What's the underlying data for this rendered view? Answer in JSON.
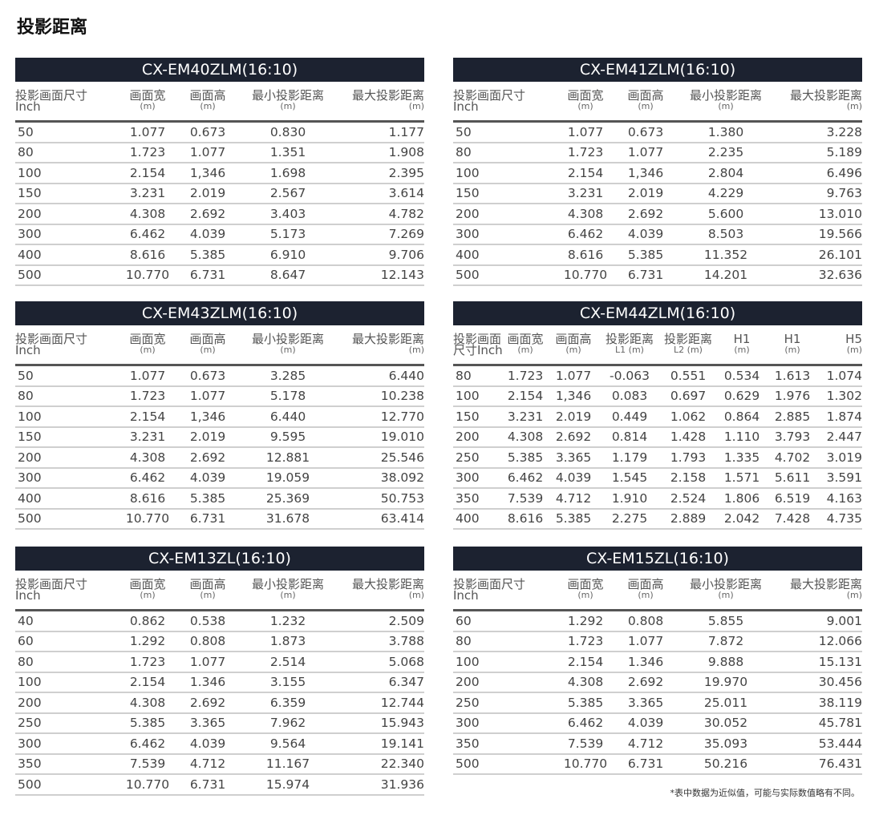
{
  "page_title": "投影距离",
  "footnote": "*表中数据为近似值，可能与实际数值略有不同。",
  "tables": [
    {
      "title": "CX-EM40ZLM(16:10)",
      "headers": [
        [
          "投影画面尺寸",
          "Inch"
        ],
        [
          "画面宽",
          "(m)"
        ],
        [
          "画面高",
          "(m)"
        ],
        [
          "最小投影距离",
          "(m)"
        ],
        [
          "最大投影距离",
          "(m)"
        ]
      ],
      "rows": [
        [
          "50",
          "1.077",
          "0.673",
          "0.830",
          "1.177"
        ],
        [
          "80",
          "1.723",
          "1.077",
          "1.351",
          "1.908"
        ],
        [
          "100",
          "2.154",
          "1,346",
          "1.698",
          "2.395"
        ],
        [
          "150",
          "3.231",
          "2.019",
          "2.567",
          "3.614"
        ],
        [
          "200",
          "4.308",
          "2.692",
          "3.403",
          "4.782"
        ],
        [
          "300",
          "6.462",
          "4.039",
          "5.173",
          "7.269"
        ],
        [
          "400",
          "8.616",
          "5.385",
          "6.910",
          "9.706"
        ],
        [
          "500",
          "10.770",
          "6.731",
          "8.647",
          "12.143"
        ]
      ]
    },
    {
      "title": "CX-EM41ZLM(16:10)",
      "headers": [
        [
          "投影画面尺寸",
          "Inch"
        ],
        [
          "画面宽",
          "(m)"
        ],
        [
          "画面高",
          "(m)"
        ],
        [
          "最小投影距离",
          "(m)"
        ],
        [
          "最大投影距离",
          "(m)"
        ]
      ],
      "rows": [
        [
          "50",
          "1.077",
          "0.673",
          "1.380",
          "3.228"
        ],
        [
          "80",
          "1.723",
          "1.077",
          "2.235",
          "5.189"
        ],
        [
          "100",
          "2.154",
          "1,346",
          "2.804",
          "6.496"
        ],
        [
          "150",
          "3.231",
          "2.019",
          "4.229",
          "9.763"
        ],
        [
          "200",
          "4.308",
          "2.692",
          "5.600",
          "13.010"
        ],
        [
          "300",
          "6.462",
          "4.039",
          "8.503",
          "19.566"
        ],
        [
          "400",
          "8.616",
          "5.385",
          "11.352",
          "26.101"
        ],
        [
          "500",
          "10.770",
          "6.731",
          "14.201",
          "32.636"
        ]
      ]
    },
    {
      "title": "CX-EM43ZLM(16:10)",
      "headers": [
        [
          "投影画面尺寸",
          "Inch"
        ],
        [
          "画面宽",
          "(m)"
        ],
        [
          "画面高",
          "(m)"
        ],
        [
          "最小投影距离",
          "(m)"
        ],
        [
          "最大投影距离",
          "(m)"
        ]
      ],
      "rows": [
        [
          "50",
          "1.077",
          "0.673",
          "3.285",
          "6.440"
        ],
        [
          "80",
          "1.723",
          "1.077",
          "5.178",
          "10.238"
        ],
        [
          "100",
          "2.154",
          "1,346",
          "6.440",
          "12.770"
        ],
        [
          "150",
          "3.231",
          "2.019",
          "9.595",
          "19.010"
        ],
        [
          "200",
          "4.308",
          "2.692",
          "12.881",
          "25.546"
        ],
        [
          "300",
          "6.462",
          "4.039",
          "19.059",
          "38.092"
        ],
        [
          "400",
          "8.616",
          "5.385",
          "25.369",
          "50.753"
        ],
        [
          "500",
          "10.770",
          "6.731",
          "31.678",
          "63.414"
        ]
      ]
    },
    {
      "title": "CX-EM44ZLM(16:10)",
      "headers": [
        [
          "投影画面",
          "尺寸Inch"
        ],
        [
          "画面宽",
          "(m)"
        ],
        [
          "画面高",
          "(m)"
        ],
        [
          "投影距离",
          "L1 (m)"
        ],
        [
          "投影距离",
          "L2 (m)"
        ],
        [
          "H1",
          "(m)"
        ],
        [
          "H1",
          "(m)"
        ],
        [
          "H5",
          "(m)"
        ]
      ],
      "rows": [
        [
          "80",
          "1.723",
          "1.077",
          "-0.063",
          "0.551",
          "0.534",
          "1.613",
          "1.074"
        ],
        [
          "100",
          "2.154",
          "1,346",
          "0.083",
          "0.697",
          "0.629",
          "1.976",
          "1.302"
        ],
        [
          "150",
          "3.231",
          "2.019",
          "0.449",
          "1.062",
          "0.864",
          "2.885",
          "1.874"
        ],
        [
          "200",
          "4.308",
          "2.692",
          "0.814",
          "1.428",
          "1.110",
          "3.793",
          "2.447"
        ],
        [
          "250",
          "5.385",
          "3.365",
          "1.179",
          "1.793",
          "1.335",
          "4.702",
          "3.019"
        ],
        [
          "300",
          "6.462",
          "4.039",
          "1.545",
          "2.158",
          "1.571",
          "5.611",
          "3.591"
        ],
        [
          "350",
          "7.539",
          "4.712",
          "1.910",
          "2.524",
          "1.806",
          "6.519",
          "4.163"
        ],
        [
          "400",
          "8.616",
          "5.385",
          "2.275",
          "2.889",
          "2.042",
          "7.428",
          "4.735"
        ]
      ]
    },
    {
      "title": "CX-EM13ZL(16:10)",
      "headers": [
        [
          "投影画面尺寸",
          "Inch"
        ],
        [
          "画面宽",
          "(m)"
        ],
        [
          "画面高",
          "(m)"
        ],
        [
          "最小投影距离",
          "(m)"
        ],
        [
          "最大投影距离",
          "(m)"
        ]
      ],
      "rows": [
        [
          "40",
          "0.862",
          "0.538",
          "1.232",
          "2.509"
        ],
        [
          "60",
          "1.292",
          "0.808",
          "1.873",
          "3.788"
        ],
        [
          "80",
          "1.723",
          "1.077",
          "2.514",
          "5.068"
        ],
        [
          "100",
          "2.154",
          "1.346",
          "3.155",
          "6.347"
        ],
        [
          "200",
          "4.308",
          "2.692",
          "6.359",
          "12.744"
        ],
        [
          "250",
          "5.385",
          "3.365",
          "7.962",
          "15.943"
        ],
        [
          "300",
          "6.462",
          "4.039",
          "9.564",
          "19.141"
        ],
        [
          "350",
          "7.539",
          "4.712",
          "11.167",
          "22.340"
        ],
        [
          "500",
          "10.770",
          "6.731",
          "15.974",
          "31.936"
        ]
      ]
    },
    {
      "title": "CX-EM15ZL(16:10)",
      "headers": [
        [
          "投影画面尺寸",
          "Inch"
        ],
        [
          "画面宽",
          "(m)"
        ],
        [
          "画面高",
          "(m)"
        ],
        [
          "最小投影距离",
          "(m)"
        ],
        [
          "最大投影距离",
          "(m)"
        ]
      ],
      "rows": [
        [
          "60",
          "1.292",
          "0.808",
          "5.855",
          "9.001"
        ],
        [
          "80",
          "1.723",
          "1.077",
          "7.872",
          "12.066"
        ],
        [
          "100",
          "2.154",
          "1.346",
          "9.888",
          "15.131"
        ],
        [
          "200",
          "4.308",
          "2.692",
          "19.970",
          "30.456"
        ],
        [
          "250",
          "5.385",
          "3.365",
          "25.011",
          "38.119"
        ],
        [
          "300",
          "6.462",
          "4.039",
          "30.052",
          "45.781"
        ],
        [
          "350",
          "7.539",
          "4.712",
          "35.093",
          "53.444"
        ],
        [
          "500",
          "10.770",
          "6.731",
          "50.216",
          "76.431"
        ]
      ]
    }
  ]
}
